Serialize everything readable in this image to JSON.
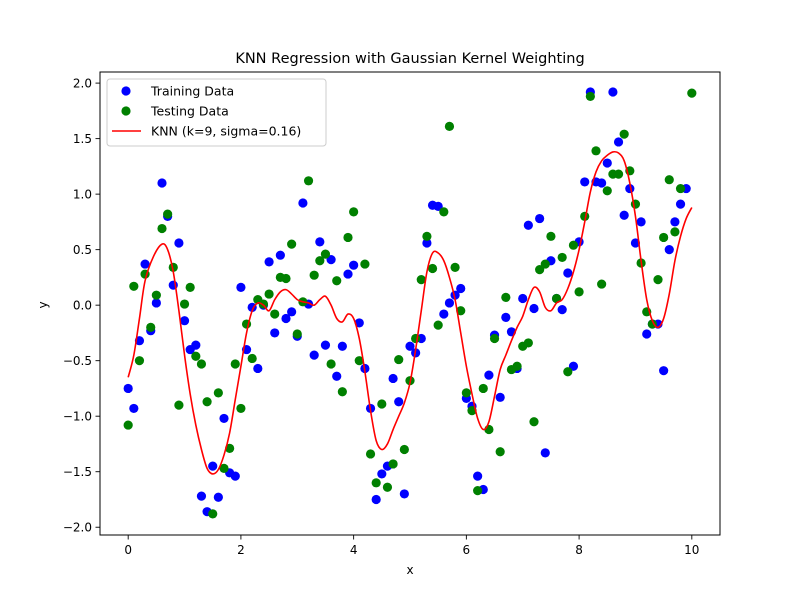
{
  "chart_data": {
    "type": "scatter",
    "title": "KNN Regression with Gaussian Kernel Weighting",
    "xlabel": "x",
    "ylabel": "y",
    "xlim": [
      -0.5,
      10.5
    ],
    "ylim": [
      -2.07,
      2.1
    ],
    "xticks": [
      0,
      2,
      4,
      6,
      8,
      10
    ],
    "xtick_labels": [
      "0",
      "2",
      "4",
      "6",
      "8",
      "10"
    ],
    "yticks": [
      -2.0,
      -1.5,
      -1.0,
      -0.5,
      0.0,
      0.5,
      1.0,
      1.5,
      2.0
    ],
    "ytick_labels": [
      "−2.0",
      "−1.5",
      "−1.0",
      "−0.5",
      "0.0",
      "0.5",
      "1.0",
      "1.5",
      "2.0"
    ],
    "grid": false,
    "legend_position": "top-left",
    "series": [
      {
        "name": "Training Data",
        "kind": "scatter",
        "color": "#0000ff",
        "points": [
          [
            0.0,
            -0.75
          ],
          [
            0.1,
            -0.93
          ],
          [
            0.2,
            -0.32
          ],
          [
            0.3,
            0.37
          ],
          [
            0.4,
            -0.23
          ],
          [
            0.5,
            0.02
          ],
          [
            0.6,
            1.1
          ],
          [
            0.7,
            0.8
          ],
          [
            0.8,
            0.18
          ],
          [
            0.9,
            0.56
          ],
          [
            1.0,
            -0.14
          ],
          [
            1.1,
            -0.4
          ],
          [
            1.2,
            -0.36
          ],
          [
            1.3,
            -1.72
          ],
          [
            1.4,
            -1.86
          ],
          [
            1.5,
            -1.45
          ],
          [
            1.6,
            -1.73
          ],
          [
            1.7,
            -1.02
          ],
          [
            1.8,
            -1.51
          ],
          [
            1.9,
            -1.54
          ],
          [
            2.0,
            0.16
          ],
          [
            2.1,
            -0.4
          ],
          [
            2.2,
            -0.02
          ],
          [
            2.3,
            -0.57
          ],
          [
            2.4,
            0.0
          ],
          [
            2.5,
            0.39
          ],
          [
            2.6,
            -0.25
          ],
          [
            2.7,
            0.45
          ],
          [
            2.8,
            -0.12
          ],
          [
            2.9,
            -0.06
          ],
          [
            3.0,
            -0.28
          ],
          [
            3.1,
            0.92
          ],
          [
            3.2,
            0.01
          ],
          [
            3.3,
            -0.45
          ],
          [
            3.4,
            0.57
          ],
          [
            3.5,
            -0.36
          ],
          [
            3.6,
            0.41
          ],
          [
            3.7,
            -0.64
          ],
          [
            3.8,
            -0.37
          ],
          [
            3.9,
            0.28
          ],
          [
            4.0,
            0.36
          ],
          [
            4.1,
            -0.16
          ],
          [
            4.2,
            -0.57
          ],
          [
            4.3,
            -0.93
          ],
          [
            4.4,
            -1.75
          ],
          [
            4.5,
            -1.52
          ],
          [
            4.6,
            -1.45
          ],
          [
            4.7,
            -0.66
          ],
          [
            4.8,
            -0.87
          ],
          [
            4.9,
            -1.7
          ],
          [
            5.0,
            -0.37
          ],
          [
            5.1,
            -0.43
          ],
          [
            5.2,
            -0.3
          ],
          [
            5.3,
            0.56
          ],
          [
            5.4,
            0.9
          ],
          [
            5.5,
            0.89
          ],
          [
            5.6,
            -0.08
          ],
          [
            5.7,
            0.02
          ],
          [
            5.8,
            0.09
          ],
          [
            5.9,
            0.15
          ],
          [
            6.0,
            -0.84
          ],
          [
            6.1,
            -0.91
          ],
          [
            6.2,
            -1.54
          ],
          [
            6.3,
            -1.66
          ],
          [
            6.4,
            -0.63
          ],
          [
            6.5,
            -0.27
          ],
          [
            6.6,
            -0.83
          ],
          [
            6.7,
            -0.11
          ],
          [
            6.8,
            -0.24
          ],
          [
            6.9,
            -0.57
          ],
          [
            7.0,
            0.06
          ],
          [
            7.1,
            0.72
          ],
          [
            7.2,
            -0.03
          ],
          [
            7.3,
            0.78
          ],
          [
            7.4,
            -1.33
          ],
          [
            7.5,
            0.4
          ],
          [
            7.6,
            0.06
          ],
          [
            7.7,
            -0.04
          ],
          [
            7.8,
            0.29
          ],
          [
            7.9,
            -0.55
          ],
          [
            8.0,
            0.57
          ],
          [
            8.1,
            1.11
          ],
          [
            8.2,
            1.92
          ],
          [
            8.3,
            1.11
          ],
          [
            8.4,
            1.1
          ],
          [
            8.5,
            1.28
          ],
          [
            8.6,
            1.92
          ],
          [
            8.7,
            1.47
          ],
          [
            8.8,
            0.81
          ],
          [
            8.9,
            1.05
          ],
          [
            9.0,
            0.56
          ],
          [
            9.1,
            0.75
          ],
          [
            9.2,
            -0.26
          ],
          [
            9.3,
            -0.17
          ],
          [
            9.4,
            -0.17
          ],
          [
            9.5,
            -0.59
          ],
          [
            9.6,
            0.5
          ],
          [
            9.7,
            0.75
          ],
          [
            9.8,
            0.91
          ],
          [
            9.9,
            1.05
          ]
        ]
      },
      {
        "name": "Testing Data",
        "kind": "scatter",
        "color": "#008000",
        "points": [
          [
            0.0,
            -1.08
          ],
          [
            0.1,
            0.17
          ],
          [
            0.2,
            -0.5
          ],
          [
            0.3,
            0.28
          ],
          [
            0.4,
            -0.2
          ],
          [
            0.5,
            0.09
          ],
          [
            0.6,
            0.69
          ],
          [
            0.7,
            0.82
          ],
          [
            0.8,
            0.34
          ],
          [
            0.9,
            -0.9
          ],
          [
            1.0,
            0.01
          ],
          [
            1.1,
            0.16
          ],
          [
            1.2,
            -0.46
          ],
          [
            1.3,
            -0.53
          ],
          [
            1.4,
            -0.87
          ],
          [
            1.5,
            -1.88
          ],
          [
            1.6,
            -0.79
          ],
          [
            1.7,
            -1.47
          ],
          [
            1.8,
            -1.29
          ],
          [
            1.9,
            -0.53
          ],
          [
            2.0,
            -0.93
          ],
          [
            2.1,
            -0.17
          ],
          [
            2.2,
            -0.48
          ],
          [
            2.3,
            0.05
          ],
          [
            2.4,
            0.01
          ],
          [
            2.5,
            0.1
          ],
          [
            2.6,
            -0.08
          ],
          [
            2.7,
            0.25
          ],
          [
            2.8,
            0.24
          ],
          [
            2.9,
            0.55
          ],
          [
            3.0,
            -0.26
          ],
          [
            3.1,
            0.03
          ],
          [
            3.2,
            1.12
          ],
          [
            3.3,
            0.27
          ],
          [
            3.4,
            0.4
          ],
          [
            3.5,
            0.46
          ],
          [
            3.6,
            -0.53
          ],
          [
            3.7,
            0.22
          ],
          [
            3.8,
            -0.78
          ],
          [
            3.9,
            0.61
          ],
          [
            4.0,
            0.84
          ],
          [
            4.1,
            -0.5
          ],
          [
            4.2,
            0.37
          ],
          [
            4.3,
            -1.34
          ],
          [
            4.4,
            -1.6
          ],
          [
            4.5,
            -0.89
          ],
          [
            4.6,
            -1.64
          ],
          [
            4.7,
            -1.43
          ],
          [
            4.8,
            -0.49
          ],
          [
            4.9,
            -1.3
          ],
          [
            5.0,
            -0.68
          ],
          [
            5.1,
            -0.3
          ],
          [
            5.2,
            0.23
          ],
          [
            5.3,
            0.62
          ],
          [
            5.4,
            0.33
          ],
          [
            5.5,
            -0.18
          ],
          [
            5.6,
            0.84
          ],
          [
            5.7,
            1.61
          ],
          [
            5.8,
            0.34
          ],
          [
            5.9,
            -0.05
          ],
          [
            6.0,
            -0.79
          ],
          [
            6.1,
            -0.95
          ],
          [
            6.2,
            -1.67
          ],
          [
            6.3,
            -0.75
          ],
          [
            6.4,
            -1.12
          ],
          [
            6.5,
            -0.3
          ],
          [
            6.6,
            -1.32
          ],
          [
            6.7,
            0.07
          ],
          [
            6.8,
            -0.58
          ],
          [
            6.9,
            -0.55
          ],
          [
            7.0,
            -0.37
          ],
          [
            7.1,
            -0.34
          ],
          [
            7.2,
            -1.05
          ],
          [
            7.3,
            0.32
          ],
          [
            7.4,
            0.37
          ],
          [
            7.5,
            0.62
          ],
          [
            7.6,
            0.06
          ],
          [
            7.7,
            0.43
          ],
          [
            7.8,
            -0.6
          ],
          [
            7.9,
            0.54
          ],
          [
            8.0,
            0.12
          ],
          [
            8.1,
            0.8
          ],
          [
            8.2,
            1.88
          ],
          [
            8.3,
            1.39
          ],
          [
            8.4,
            0.19
          ],
          [
            8.5,
            1.03
          ],
          [
            8.6,
            1.18
          ],
          [
            8.7,
            1.18
          ],
          [
            8.8,
            1.54
          ],
          [
            8.9,
            1.21
          ],
          [
            9.0,
            0.91
          ],
          [
            9.1,
            0.38
          ],
          [
            9.2,
            -0.06
          ],
          [
            9.3,
            -0.17
          ],
          [
            9.4,
            0.23
          ],
          [
            9.5,
            0.61
          ],
          [
            9.6,
            1.13
          ],
          [
            9.7,
            0.66
          ],
          [
            9.8,
            1.05
          ],
          [
            10.0,
            1.91
          ]
        ]
      },
      {
        "name": "KNN (k=9, sigma=0.16)",
        "kind": "line",
        "color": "#ff0000",
        "points": [
          [
            0.0,
            -0.65
          ],
          [
            0.1,
            -0.45
          ],
          [
            0.2,
            -0.12
          ],
          [
            0.3,
            0.22
          ],
          [
            0.45,
            0.44
          ],
          [
            0.6,
            0.55
          ],
          [
            0.7,
            0.5
          ],
          [
            0.8,
            0.3
          ],
          [
            0.9,
            -0.05
          ],
          [
            1.0,
            -0.45
          ],
          [
            1.1,
            -0.8
          ],
          [
            1.2,
            -1.08
          ],
          [
            1.3,
            -1.3
          ],
          [
            1.4,
            -1.47
          ],
          [
            1.5,
            -1.52
          ],
          [
            1.6,
            -1.48
          ],
          [
            1.7,
            -1.35
          ],
          [
            1.8,
            -1.15
          ],
          [
            1.9,
            -0.85
          ],
          [
            2.0,
            -0.55
          ],
          [
            2.1,
            -0.25
          ],
          [
            2.2,
            -0.05
          ],
          [
            2.3,
            0.02
          ],
          [
            2.4,
            0.0
          ],
          [
            2.5,
            -0.05
          ],
          [
            2.6,
            0.05
          ],
          [
            2.7,
            0.12
          ],
          [
            2.8,
            0.14
          ],
          [
            2.9,
            0.1
          ],
          [
            3.0,
            0.05
          ],
          [
            3.1,
            0.03
          ],
          [
            3.2,
            0.02
          ],
          [
            3.3,
            0.0
          ],
          [
            3.4,
            0.05
          ],
          [
            3.5,
            0.08
          ],
          [
            3.6,
            0.0
          ],
          [
            3.7,
            -0.12
          ],
          [
            3.8,
            -0.15
          ],
          [
            3.9,
            -0.08
          ],
          [
            4.0,
            -0.12
          ],
          [
            4.1,
            -0.3
          ],
          [
            4.2,
            -0.6
          ],
          [
            4.3,
            -0.95
          ],
          [
            4.4,
            -1.22
          ],
          [
            4.5,
            -1.3
          ],
          [
            4.6,
            -1.25
          ],
          [
            4.7,
            -1.12
          ],
          [
            4.8,
            -1.0
          ],
          [
            4.9,
            -0.88
          ],
          [
            5.0,
            -0.7
          ],
          [
            5.1,
            -0.4
          ],
          [
            5.2,
            -0.05
          ],
          [
            5.3,
            0.3
          ],
          [
            5.4,
            0.47
          ],
          [
            5.5,
            0.47
          ],
          [
            5.6,
            0.4
          ],
          [
            5.7,
            0.25
          ],
          [
            5.8,
            0.05
          ],
          [
            5.9,
            -0.25
          ],
          [
            6.0,
            -0.55
          ],
          [
            6.1,
            -0.8
          ],
          [
            6.2,
            -1.02
          ],
          [
            6.3,
            -1.12
          ],
          [
            6.4,
            -1.05
          ],
          [
            6.5,
            -0.82
          ],
          [
            6.6,
            -0.58
          ],
          [
            6.7,
            -0.45
          ],
          [
            6.8,
            -0.32
          ],
          [
            6.9,
            -0.2
          ],
          [
            7.0,
            -0.1
          ],
          [
            7.1,
            0.05
          ],
          [
            7.2,
            0.16
          ],
          [
            7.3,
            0.12
          ],
          [
            7.4,
            -0.02
          ],
          [
            7.5,
            -0.05
          ],
          [
            7.6,
            0.02
          ],
          [
            7.7,
            0.05
          ],
          [
            7.8,
            0.15
          ],
          [
            7.9,
            0.3
          ],
          [
            8.0,
            0.5
          ],
          [
            8.1,
            0.75
          ],
          [
            8.2,
            1.02
          ],
          [
            8.3,
            1.2
          ],
          [
            8.4,
            1.3
          ],
          [
            8.5,
            1.35
          ],
          [
            8.6,
            1.38
          ],
          [
            8.7,
            1.37
          ],
          [
            8.8,
            1.3
          ],
          [
            8.9,
            1.1
          ],
          [
            9.0,
            0.8
          ],
          [
            9.1,
            0.4
          ],
          [
            9.2,
            0.05
          ],
          [
            9.3,
            -0.14
          ],
          [
            9.4,
            -0.2
          ],
          [
            9.5,
            -0.12
          ],
          [
            9.6,
            0.1
          ],
          [
            9.7,
            0.4
          ],
          [
            9.8,
            0.62
          ],
          [
            9.9,
            0.78
          ],
          [
            10.0,
            0.88
          ]
        ]
      }
    ]
  }
}
